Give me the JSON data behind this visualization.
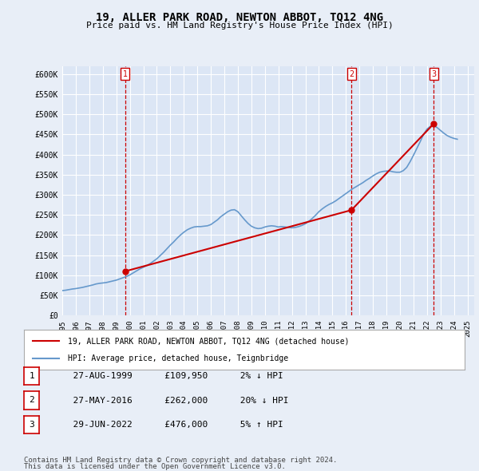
{
  "title": "19, ALLER PARK ROAD, NEWTON ABBOT, TQ12 4NG",
  "subtitle": "Price paid vs. HM Land Registry's House Price Index (HPI)",
  "ylabel": "",
  "ylim": [
    0,
    620000
  ],
  "yticks": [
    0,
    50000,
    100000,
    150000,
    200000,
    250000,
    300000,
    350000,
    400000,
    450000,
    500000,
    550000,
    600000
  ],
  "ytick_labels": [
    "£0",
    "£50K",
    "£100K",
    "£150K",
    "£200K",
    "£250K",
    "£300K",
    "£350K",
    "£400K",
    "£450K",
    "£500K",
    "£550K",
    "£600K"
  ],
  "background_color": "#e8eef7",
  "plot_bg_color": "#dce6f5",
  "grid_color": "#ffffff",
  "hpi_color": "#6699cc",
  "price_color": "#cc0000",
  "dashed_line_color": "#cc0000",
  "sale_dates": [
    1999.65,
    2016.41,
    2022.49
  ],
  "sale_prices": [
    109950,
    262000,
    476000
  ],
  "sale_labels": [
    "1",
    "2",
    "3"
  ],
  "legend_line1": "19, ALLER PARK ROAD, NEWTON ABBOT, TQ12 4NG (detached house)",
  "legend_line2": "HPI: Average price, detached house, Teignbridge",
  "table_rows": [
    {
      "num": "1",
      "date": "27-AUG-1999",
      "price": "£109,950",
      "change": "2% ↓ HPI"
    },
    {
      "num": "2",
      "date": "27-MAY-2016",
      "price": "£262,000",
      "change": "20% ↓ HPI"
    },
    {
      "num": "3",
      "date": "29-JUN-2022",
      "price": "£476,000",
      "change": "5% ↑ HPI"
    }
  ],
  "footer_line1": "Contains HM Land Registry data © Crown copyright and database right 2024.",
  "footer_line2": "This data is licensed under the Open Government Licence v3.0.",
  "xmin": 1995.0,
  "xmax": 2025.5,
  "hpi_years": [
    1995.0,
    1995.25,
    1995.5,
    1995.75,
    1996.0,
    1996.25,
    1996.5,
    1996.75,
    1997.0,
    1997.25,
    1997.5,
    1997.75,
    1998.0,
    1998.25,
    1998.5,
    1998.75,
    1999.0,
    1999.25,
    1999.5,
    1999.75,
    2000.0,
    2000.25,
    2000.5,
    2000.75,
    2001.0,
    2001.25,
    2001.5,
    2001.75,
    2002.0,
    2002.25,
    2002.5,
    2002.75,
    2003.0,
    2003.25,
    2003.5,
    2003.75,
    2004.0,
    2004.25,
    2004.5,
    2004.75,
    2005.0,
    2005.25,
    2005.5,
    2005.75,
    2006.0,
    2006.25,
    2006.5,
    2006.75,
    2007.0,
    2007.25,
    2007.5,
    2007.75,
    2008.0,
    2008.25,
    2008.5,
    2008.75,
    2009.0,
    2009.25,
    2009.5,
    2009.75,
    2010.0,
    2010.25,
    2010.5,
    2010.75,
    2011.0,
    2011.25,
    2011.5,
    2011.75,
    2012.0,
    2012.25,
    2012.5,
    2012.75,
    2013.0,
    2013.25,
    2013.5,
    2013.75,
    2014.0,
    2014.25,
    2014.5,
    2014.75,
    2015.0,
    2015.25,
    2015.5,
    2015.75,
    2016.0,
    2016.25,
    2016.5,
    2016.75,
    2017.0,
    2017.25,
    2017.5,
    2017.75,
    2018.0,
    2018.25,
    2018.5,
    2018.75,
    2019.0,
    2019.25,
    2019.5,
    2019.75,
    2020.0,
    2020.25,
    2020.5,
    2020.75,
    2021.0,
    2021.25,
    2021.5,
    2021.75,
    2022.0,
    2022.25,
    2022.5,
    2022.75,
    2023.0,
    2023.25,
    2023.5,
    2023.75,
    2024.0,
    2024.25
  ],
  "hpi_values": [
    62000,
    63000,
    64500,
    66000,
    67000,
    68500,
    70000,
    72000,
    74000,
    76000,
    78500,
    80000,
    81000,
    82000,
    84000,
    86000,
    88000,
    91000,
    94000,
    97000,
    101000,
    106000,
    111000,
    116000,
    120000,
    124000,
    129000,
    135000,
    141000,
    149000,
    157000,
    166000,
    175000,
    183000,
    192000,
    200000,
    207000,
    213000,
    217000,
    220000,
    221000,
    221000,
    222000,
    223000,
    226000,
    232000,
    238000,
    246000,
    252000,
    258000,
    262000,
    263000,
    258000,
    248000,
    238000,
    229000,
    222000,
    218000,
    216000,
    217000,
    220000,
    222000,
    223000,
    222000,
    220000,
    221000,
    220000,
    219000,
    218000,
    219000,
    221000,
    224000,
    228000,
    234000,
    241000,
    249000,
    258000,
    265000,
    271000,
    276000,
    280000,
    285000,
    291000,
    297000,
    303000,
    309000,
    315000,
    320000,
    325000,
    330000,
    336000,
    341000,
    347000,
    352000,
    356000,
    358000,
    359000,
    359000,
    357000,
    356000,
    356000,
    360000,
    368000,
    382000,
    398000,
    415000,
    432000,
    450000,
    463000,
    470000,
    472000,
    467000,
    460000,
    453000,
    447000,
    443000,
    440000,
    438000
  ]
}
